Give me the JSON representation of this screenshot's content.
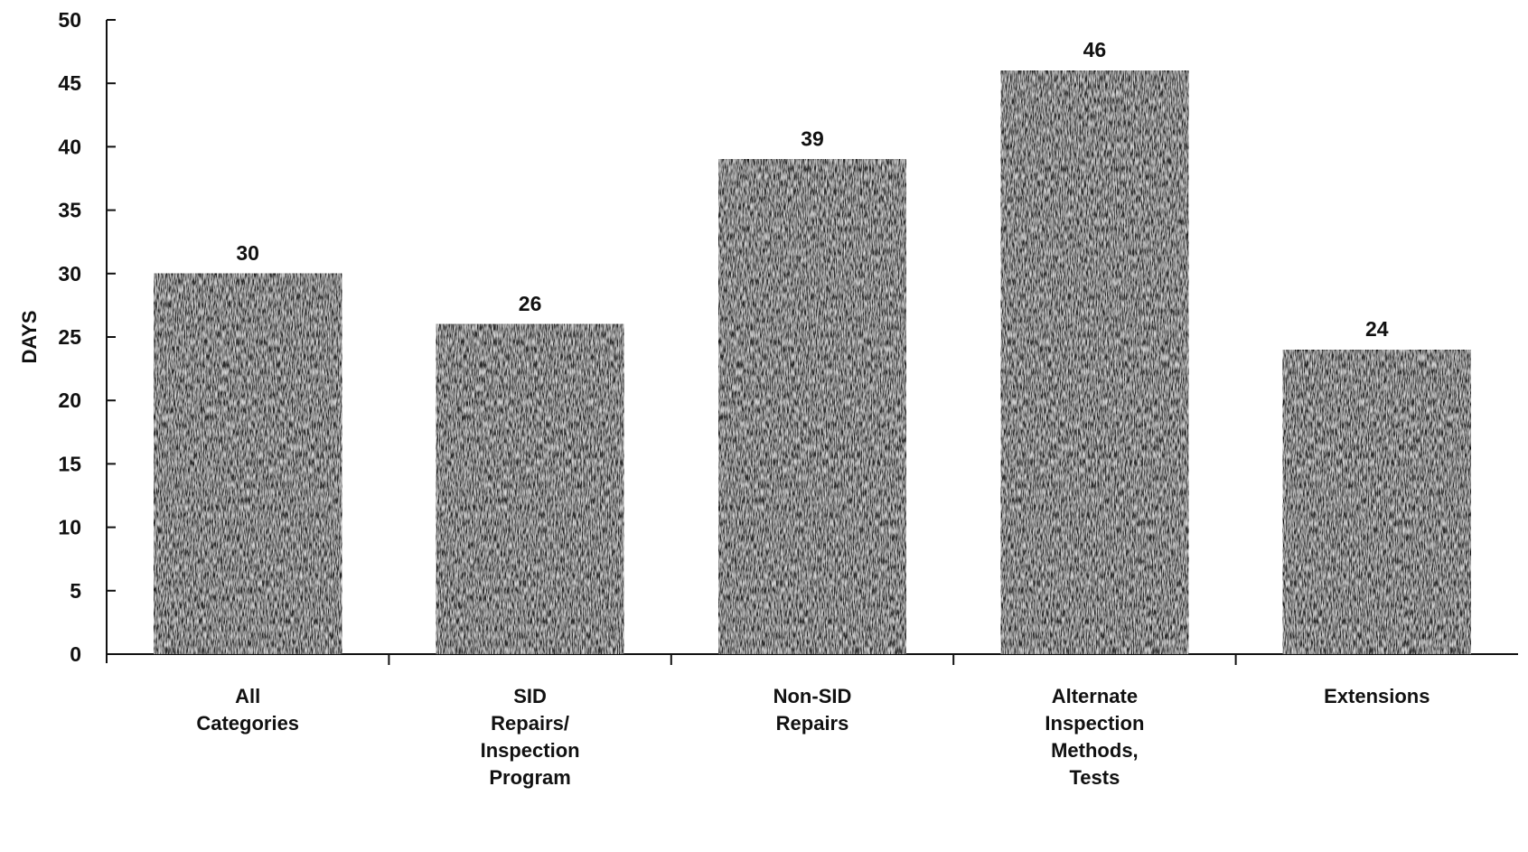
{
  "chart_data": {
    "type": "bar",
    "title": "",
    "xlabel": "",
    "ylabel": "DAYS",
    "ylim": [
      0,
      50
    ],
    "yticks": [
      0,
      5,
      10,
      15,
      20,
      25,
      30,
      35,
      40,
      45,
      50
    ],
    "categories": [
      [
        "All",
        "Categories"
      ],
      [
        "SID",
        "Repairs/",
        "Inspection",
        "Program"
      ],
      [
        "Non-SID",
        "Repairs"
      ],
      [
        "Alternate",
        "Inspection",
        "Methods,",
        "Tests"
      ],
      [
        "Extensions"
      ]
    ],
    "values": [
      30,
      26,
      39,
      46,
      24
    ],
    "value_labels": [
      "30",
      "26",
      "39",
      "46",
      "24"
    ],
    "grid": false,
    "bar_color": "#2b2b2b",
    "axis_color": "#111111"
  }
}
